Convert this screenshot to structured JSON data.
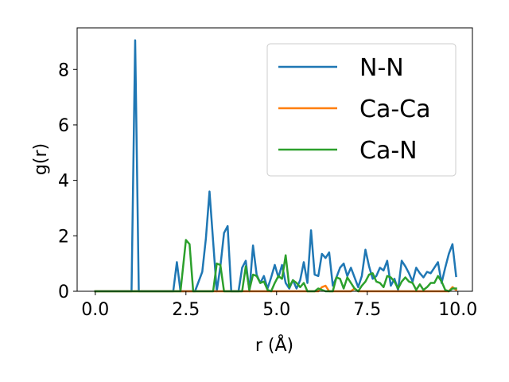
{
  "chart_data": {
    "type": "line",
    "title": "",
    "xlabel": "r (Å)",
    "ylabel": "g(r)",
    "xlim": [
      -0.5,
      10.4
    ],
    "ylim": [
      0,
      9.5
    ],
    "xticks": [
      0.0,
      2.5,
      5.0,
      7.5,
      10.0
    ],
    "xtick_labels": [
      "0.0",
      "2.5",
      "5.0",
      "7.5",
      "10.0"
    ],
    "yticks": [
      0,
      2,
      4,
      6,
      8
    ],
    "ytick_labels": [
      "0",
      "2",
      "4",
      "6",
      "8"
    ],
    "grid": false,
    "legend_position": "top-right",
    "series": [
      {
        "name": "N-N",
        "color": "#1f77b4",
        "points": [
          [
            0.0,
            0
          ],
          [
            1.0,
            0
          ],
          [
            1.1,
            9.05
          ],
          [
            1.2,
            0
          ],
          [
            2.15,
            0
          ],
          [
            2.25,
            1.05
          ],
          [
            2.35,
            0
          ],
          [
            2.75,
            0
          ],
          [
            2.95,
            0.7
          ],
          [
            3.05,
            1.9
          ],
          [
            3.15,
            3.6
          ],
          [
            3.25,
            1.8
          ],
          [
            3.35,
            0
          ],
          [
            3.45,
            0.9
          ],
          [
            3.55,
            2.1
          ],
          [
            3.65,
            2.35
          ],
          [
            3.75,
            0
          ],
          [
            3.95,
            0
          ],
          [
            4.05,
            0.85
          ],
          [
            4.15,
            1.1
          ],
          [
            4.25,
            0
          ],
          [
            4.35,
            1.65
          ],
          [
            4.45,
            0.6
          ],
          [
            4.55,
            0.3
          ],
          [
            4.65,
            0.55
          ],
          [
            4.75,
            0.1
          ],
          [
            4.85,
            0.5
          ],
          [
            4.95,
            0.95
          ],
          [
            5.05,
            0.5
          ],
          [
            5.15,
            0.95
          ],
          [
            5.25,
            0.3
          ],
          [
            5.35,
            0.1
          ],
          [
            5.45,
            0.4
          ],
          [
            5.55,
            0.1
          ],
          [
            5.65,
            0.4
          ],
          [
            5.75,
            1.05
          ],
          [
            5.85,
            0.3
          ],
          [
            5.95,
            2.2
          ],
          [
            6.05,
            0.6
          ],
          [
            6.15,
            0.55
          ],
          [
            6.25,
            1.35
          ],
          [
            6.35,
            1.2
          ],
          [
            6.45,
            1.4
          ],
          [
            6.55,
            0.2
          ],
          [
            6.65,
            0.5
          ],
          [
            6.75,
            0.85
          ],
          [
            6.85,
            1.0
          ],
          [
            6.95,
            0.55
          ],
          [
            7.05,
            0.85
          ],
          [
            7.15,
            0.5
          ],
          [
            7.25,
            0.15
          ],
          [
            7.35,
            0.55
          ],
          [
            7.45,
            1.5
          ],
          [
            7.55,
            0.9
          ],
          [
            7.65,
            0.45
          ],
          [
            7.75,
            0.55
          ],
          [
            7.85,
            0.85
          ],
          [
            7.95,
            0.75
          ],
          [
            8.05,
            1.1
          ],
          [
            8.15,
            0.2
          ],
          [
            8.25,
            0.45
          ],
          [
            8.35,
            0.05
          ],
          [
            8.45,
            1.1
          ],
          [
            8.55,
            0.9
          ],
          [
            8.65,
            0.65
          ],
          [
            8.75,
            0.35
          ],
          [
            8.85,
            0.85
          ],
          [
            8.95,
            0.65
          ],
          [
            9.05,
            0.5
          ],
          [
            9.15,
            0.7
          ],
          [
            9.25,
            0.65
          ],
          [
            9.35,
            0.85
          ],
          [
            9.45,
            1.05
          ],
          [
            9.55,
            0.3
          ],
          [
            9.65,
            0.85
          ],
          [
            9.75,
            1.35
          ],
          [
            9.85,
            1.7
          ],
          [
            9.95,
            0.55
          ]
        ]
      },
      {
        "name": "Ca-Ca",
        "color": "#ff7f0e",
        "points": [
          [
            0.0,
            0
          ],
          [
            6.15,
            0
          ],
          [
            6.25,
            0.15
          ],
          [
            6.35,
            0.2
          ],
          [
            6.45,
            0
          ],
          [
            7.05,
            0
          ],
          [
            7.15,
            0.1
          ],
          [
            7.25,
            0
          ],
          [
            9.75,
            0
          ],
          [
            9.85,
            0.15
          ],
          [
            9.95,
            0.05
          ]
        ]
      },
      {
        "name": "Ca-N",
        "color": "#2ca02c",
        "points": [
          [
            0.0,
            0
          ],
          [
            2.35,
            0
          ],
          [
            2.5,
            1.85
          ],
          [
            2.6,
            1.7
          ],
          [
            2.7,
            0
          ],
          [
            3.25,
            0
          ],
          [
            3.35,
            1.0
          ],
          [
            3.45,
            0.95
          ],
          [
            3.55,
            0
          ],
          [
            4.05,
            0
          ],
          [
            4.15,
            0.9
          ],
          [
            4.25,
            0.05
          ],
          [
            4.35,
            0.6
          ],
          [
            4.45,
            0.55
          ],
          [
            4.55,
            0.3
          ],
          [
            4.65,
            0.35
          ],
          [
            4.75,
            0.05
          ],
          [
            4.85,
            0
          ],
          [
            4.95,
            0.3
          ],
          [
            5.05,
            0.55
          ],
          [
            5.15,
            0.45
          ],
          [
            5.25,
            1.3
          ],
          [
            5.35,
            0.15
          ],
          [
            5.45,
            0.4
          ],
          [
            5.55,
            0.3
          ],
          [
            5.65,
            0.15
          ],
          [
            5.75,
            0.3
          ],
          [
            5.85,
            0
          ],
          [
            6.05,
            0
          ],
          [
            6.15,
            0.1
          ],
          [
            6.25,
            0.05
          ],
          [
            6.35,
            0
          ],
          [
            6.55,
            0
          ],
          [
            6.65,
            0.5
          ],
          [
            6.75,
            0.45
          ],
          [
            6.85,
            0.1
          ],
          [
            6.95,
            0.5
          ],
          [
            7.05,
            0.3
          ],
          [
            7.15,
            0.1
          ],
          [
            7.25,
            0
          ],
          [
            7.35,
            0.2
          ],
          [
            7.45,
            0.35
          ],
          [
            7.55,
            0.6
          ],
          [
            7.65,
            0.65
          ],
          [
            7.75,
            0.35
          ],
          [
            7.85,
            0.3
          ],
          [
            7.95,
            0.15
          ],
          [
            8.05,
            0.55
          ],
          [
            8.15,
            0.5
          ],
          [
            8.25,
            0.35
          ],
          [
            8.35,
            0.1
          ],
          [
            8.45,
            0.35
          ],
          [
            8.55,
            0.5
          ],
          [
            8.65,
            0.35
          ],
          [
            8.75,
            0.3
          ],
          [
            8.85,
            0.05
          ],
          [
            8.95,
            0.25
          ],
          [
            9.05,
            0.05
          ],
          [
            9.15,
            0.15
          ],
          [
            9.25,
            0.3
          ],
          [
            9.35,
            0.3
          ],
          [
            9.45,
            0.55
          ],
          [
            9.55,
            0.35
          ],
          [
            9.65,
            0.05
          ],
          [
            9.75,
            0
          ],
          [
            9.85,
            0.1
          ],
          [
            9.95,
            0.1
          ]
        ]
      }
    ]
  }
}
